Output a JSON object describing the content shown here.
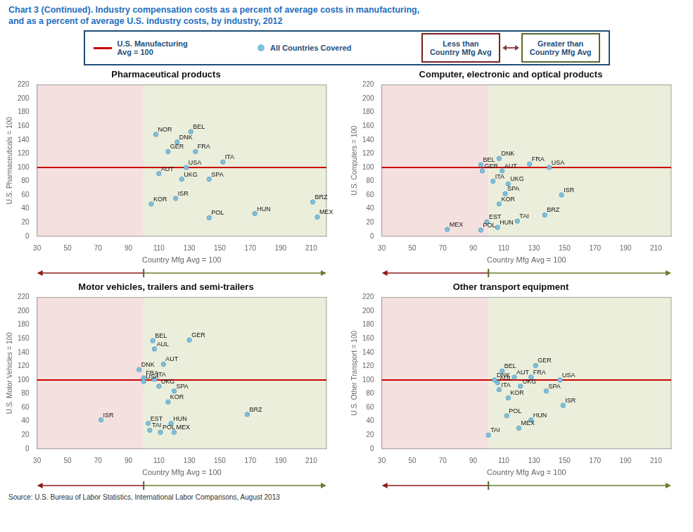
{
  "title": "Chart 3 (Continued). Industry compensation costs as a percent of average costs in manufacturing,",
  "subtitle": "and as a percent of average U.S. industry costs, by industry, 2012",
  "title_color": "#1F6FBE",
  "source": "Source: U.S. Bureau of Labor Statistics, International Labor Comparisons, August 2013",
  "legend_border_color": "#1F4E79",
  "legend_text_color": "#1F4E79",
  "legend_arrow_color": "#8B3A3A",
  "legend_items": [
    {
      "marker": "line",
      "color": "#CC0000",
      "text": [
        "U.S. Manufacturing",
        "Avg = 100"
      ]
    },
    {
      "marker": "dot",
      "color": "#7FBFDC",
      "text": [
        "All Countries Covered"
      ]
    },
    {
      "marker": "box",
      "color": "#7B2020",
      "text": [
        "Less than",
        "Country Mfg Avg"
      ]
    },
    {
      "marker": "box",
      "color": "#556B2F",
      "text": [
        "Greater than",
        "Country Mfg Avg"
      ]
    }
  ],
  "chart_data": [
    {
      "type": "scatter",
      "title": "Pharmaceutical products",
      "x_label": "Country Mfg Avg = 100",
      "y_label": "U.S. Pharmaceuticals = 100",
      "x": [
        108,
        131,
        122,
        116,
        134,
        128,
        152,
        110,
        125,
        143,
        121,
        105,
        143,
        173,
        211,
        214
      ],
      "values": [
        148,
        152,
        137,
        123,
        123,
        100,
        108,
        91,
        83,
        83,
        55,
        47,
        27,
        33,
        50,
        28
      ],
      "labels": [
        "NOR",
        "BEL",
        "DNK",
        "GER",
        "FRA",
        "USA",
        "ITA",
        "AUT",
        "UKG",
        "SPA",
        "ISR",
        "KOR",
        "POL",
        "HUN",
        "BRZ",
        "MEX"
      ],
      "color": "#7FBFDC",
      "edge_color": "#5A9EC0",
      "xlim": [
        30,
        220
      ],
      "ylim": [
        0,
        220
      ],
      "xticks": [
        30,
        50,
        70,
        90,
        110,
        130,
        150,
        170,
        190,
        210
      ],
      "yticks": [
        0,
        20,
        40,
        60,
        80,
        100,
        120,
        140,
        160,
        180,
        200,
        220
      ],
      "grid": false,
      "hline": 100,
      "hline_color": "#CC0000",
      "divider_x": 100,
      "region_colors": [
        "#F5E0E0",
        "#EAEEDB"
      ],
      "arrow_colors": [
        "#8B1A1A",
        "#6B7B2F"
      ],
      "divider_tick_color": "#4B6B2F"
    },
    {
      "type": "scatter",
      "title": "Computer, electronic and optical products",
      "x_label": "Country Mfg Avg = 100",
      "y_label": "U.S. Computers = 100",
      "x": [
        107,
        127,
        95,
        96,
        109,
        140,
        103,
        113,
        111,
        107,
        148,
        99,
        119,
        106,
        95,
        73,
        137
      ],
      "values": [
        113,
        105,
        104,
        95,
        95,
        100,
        80,
        76,
        62,
        47,
        60,
        21,
        22,
        13,
        9,
        10,
        31
      ],
      "labels": [
        "DNK",
        "FRA",
        "BEL",
        "GER",
        "AUT",
        "USA",
        "ITA",
        "UKG",
        "SPA",
        "KOR",
        "ISR",
        "EST",
        "TAI",
        "HUN",
        "POL",
        "MEX",
        "BRZ"
      ],
      "color": "#7FBFDC",
      "edge_color": "#5A9EC0",
      "xlim": [
        30,
        220
      ],
      "ylim": [
        0,
        220
      ],
      "xticks": [
        30,
        50,
        70,
        90,
        110,
        130,
        150,
        170,
        190,
        210
      ],
      "yticks": [
        0,
        20,
        40,
        60,
        80,
        100,
        120,
        140,
        160,
        180,
        200,
        220
      ],
      "grid": false,
      "hline": 100,
      "hline_color": "#CC0000",
      "divider_x": 100,
      "region_colors": [
        "#F5E0E0",
        "#EAEEDB"
      ],
      "arrow_colors": [
        "#8B1A1A",
        "#6B7B2F"
      ],
      "divider_tick_color": "#4B6B2F"
    },
    {
      "type": "scatter",
      "title": "Motor vehicles, trailers and semi-trailers",
      "x_label": "Country Mfg Avg = 100",
      "y_label": "U.S. Motor Vehicles = 100",
      "x": [
        106,
        130,
        107,
        113,
        97,
        100,
        107,
        100,
        110,
        120,
        116,
        72,
        103,
        118,
        104,
        111,
        120,
        168
      ],
      "values": [
        157,
        158,
        145,
        123,
        115,
        103,
        101,
        98,
        91,
        84,
        68,
        42,
        37,
        37,
        27,
        24,
        24,
        50
      ],
      "labels": [
        "BEL",
        "GER",
        "AUL",
        "AUT",
        "DNK",
        "FRA",
        "ITA",
        "USA",
        "UKG",
        "SPA",
        "KOR",
        "ISR",
        "EST",
        "HUN",
        "TAI",
        "POL",
        "MEX",
        "BRZ"
      ],
      "color": "#7FBFDC",
      "edge_color": "#5A9EC0",
      "xlim": [
        30,
        220
      ],
      "ylim": [
        0,
        220
      ],
      "xticks": [
        30,
        50,
        70,
        90,
        110,
        130,
        150,
        170,
        190,
        210
      ],
      "yticks": [
        0,
        20,
        40,
        60,
        80,
        100,
        120,
        140,
        160,
        180,
        200,
        220
      ],
      "grid": false,
      "hline": 100,
      "hline_color": "#CC0000",
      "divider_x": 100,
      "region_colors": [
        "#F5E0E0",
        "#EAEEDB"
      ],
      "arrow_colors": [
        "#8B1A1A",
        "#6B7B2F"
      ],
      "divider_tick_color": "#4B6B2F"
    },
    {
      "type": "scatter",
      "title": "Other transport equipment",
      "x_label": "Country Mfg Avg = 100",
      "y_label": "U.S. Other Transport = 100",
      "x": [
        109,
        131,
        106,
        117,
        104,
        128,
        147,
        107,
        121,
        138,
        113,
        149,
        112,
        128,
        120,
        100
      ],
      "values": [
        113,
        121,
        96,
        104,
        100,
        104,
        100,
        86,
        91,
        84,
        74,
        63,
        48,
        42,
        30,
        20
      ],
      "labels": [
        "BEL",
        "GER",
        "AUL",
        "AUT",
        "DNK",
        "FRA",
        "USA",
        "ITA",
        "UKG",
        "SPA",
        "KOR",
        "ISR",
        "POL",
        "HUN",
        "MEX",
        "TAI"
      ],
      "color": "#7FBFDC",
      "edge_color": "#5A9EC0",
      "xlim": [
        30,
        220
      ],
      "ylim": [
        0,
        220
      ],
      "xticks": [
        30,
        50,
        70,
        90,
        110,
        130,
        150,
        170,
        190,
        210
      ],
      "yticks": [
        0,
        20,
        40,
        60,
        80,
        100,
        120,
        140,
        160,
        180,
        200,
        220
      ],
      "grid": false,
      "hline": 100,
      "hline_color": "#CC0000",
      "divider_x": 100,
      "region_colors": [
        "#F5E0E0",
        "#EAEEDB"
      ],
      "arrow_colors": [
        "#8B1A1A",
        "#6B7B2F"
      ],
      "divider_tick_color": "#4B6B2F"
    }
  ]
}
